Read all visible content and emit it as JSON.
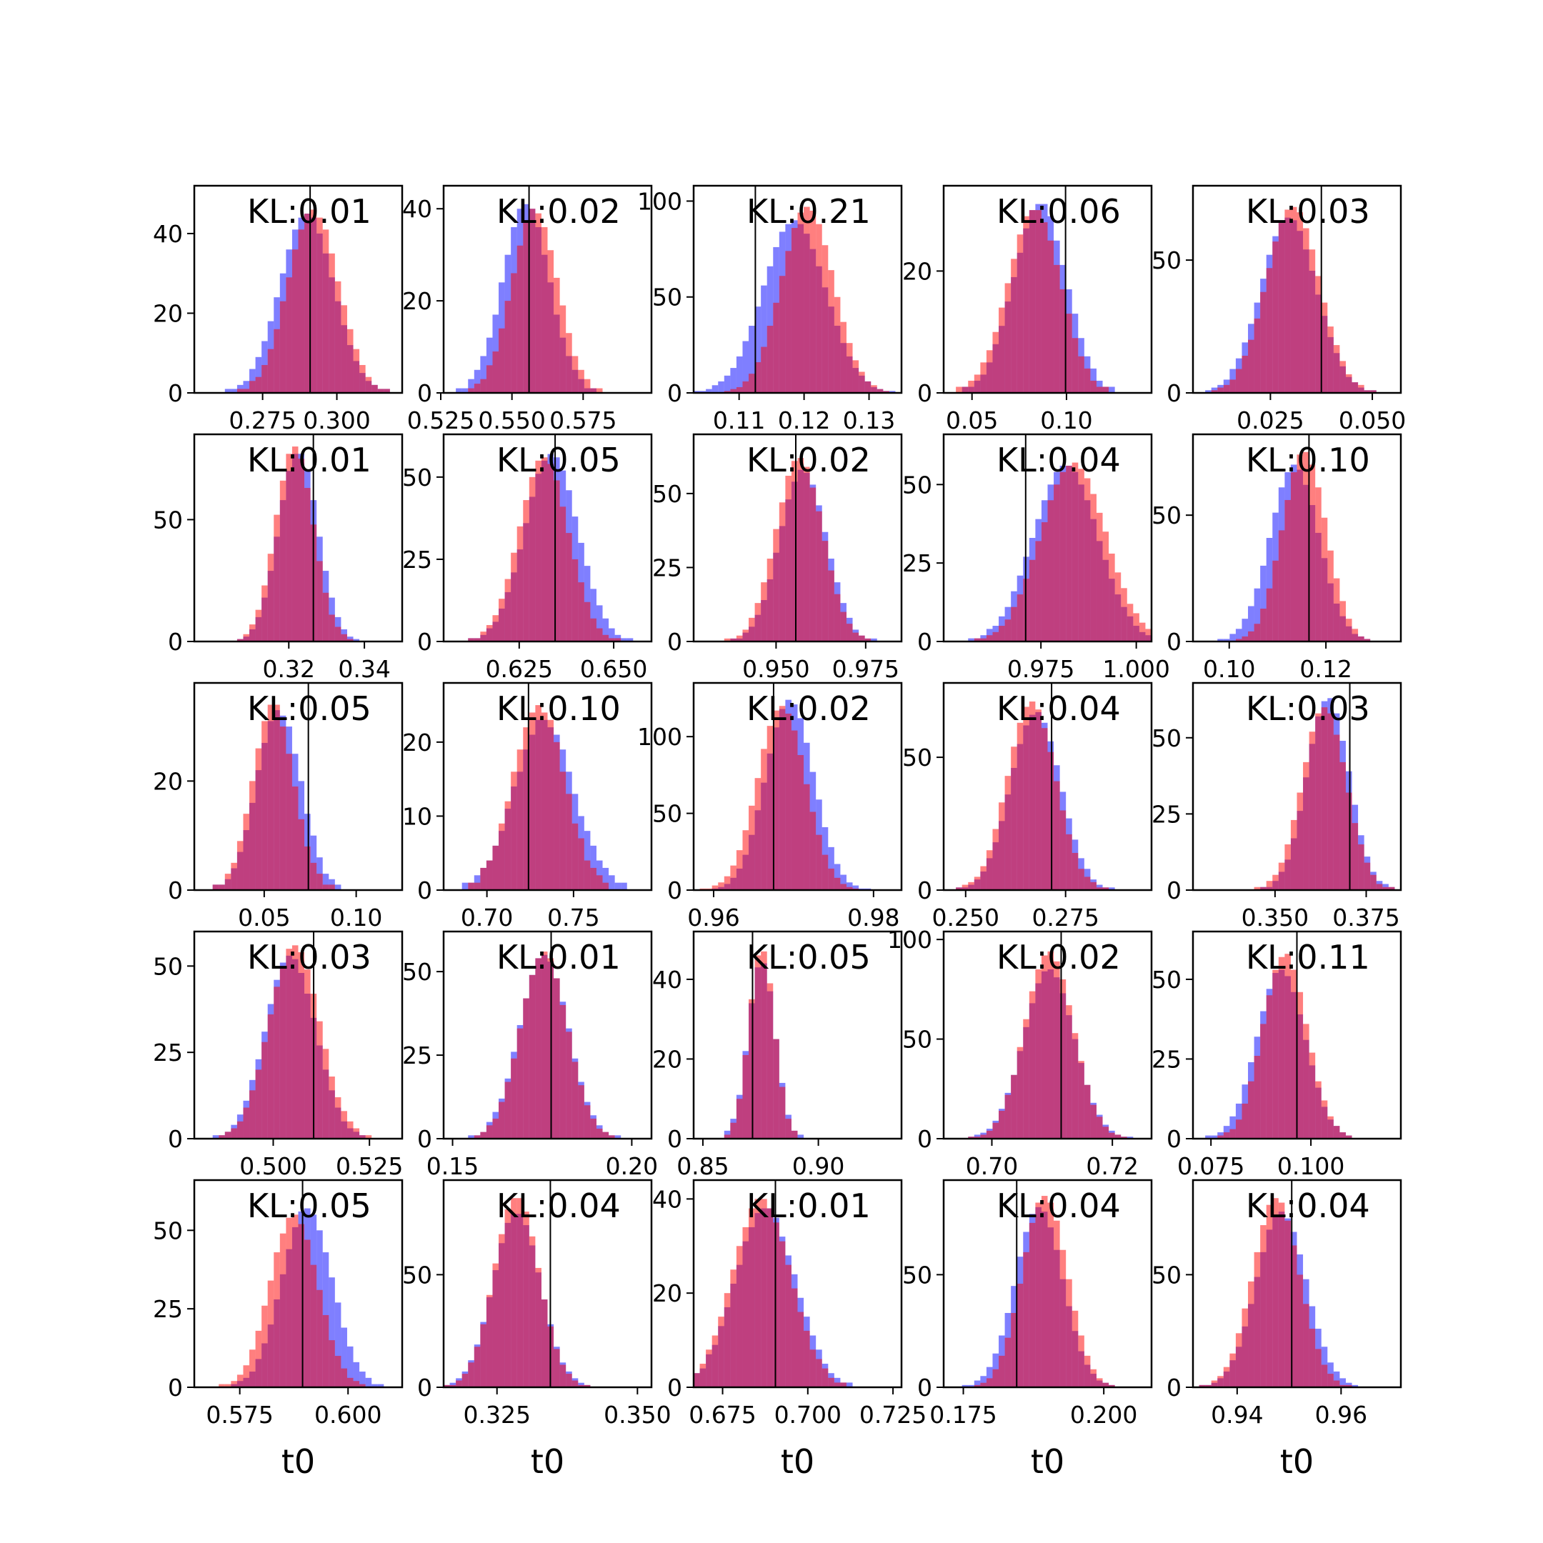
{
  "figure": {
    "xlabel": "t0",
    "colors": {
      "red": "#ff0000",
      "blue": "#0000ff",
      "overlap": "#7f3fbf",
      "axis": "#000000"
    },
    "panel_label_prefix": "KL:"
  },
  "chart_data": [
    {
      "type": "histogram",
      "kl": "0.01",
      "xlim": [
        0.252,
        0.322
      ],
      "ylim": [
        0,
        52
      ],
      "xticks": [
        0.275,
        0.3
      ],
      "xtick_labels": [
        "0.275",
        "0.300"
      ],
      "yticks": [
        0,
        20,
        40
      ],
      "ytick_labels": [
        "0",
        "20",
        "40"
      ],
      "truth": 0.291,
      "red": {
        "mean": 0.292,
        "sd": 0.0085,
        "peak": 46
      },
      "blue": {
        "mean": 0.29,
        "sd": 0.009,
        "peak": 45
      },
      "xlabel": ""
    },
    {
      "type": "histogram",
      "kl": "0.02",
      "xlim": [
        0.526,
        0.599
      ],
      "ylim": [
        0,
        45
      ],
      "xticks": [
        0.525,
        0.55,
        0.575
      ],
      "xtick_labels": [
        "0.525",
        "0.550",
        "0.575"
      ],
      "yticks": [
        0,
        20,
        40
      ],
      "ytick_labels": [
        "0",
        "20",
        "40"
      ],
      "truth": 0.556,
      "red": {
        "mean": 0.558,
        "sd": 0.008,
        "peak": 40
      },
      "blue": {
        "mean": 0.555,
        "sd": 0.0082,
        "peak": 41
      },
      "xlabel": ""
    },
    {
      "type": "histogram",
      "kl": "0.21",
      "xlim": [
        0.103,
        0.135
      ],
      "ylim": [
        0,
        108
      ],
      "xticks": [
        0.11,
        0.12,
        0.13
      ],
      "xtick_labels": [
        "0.11",
        "0.12",
        "0.13"
      ],
      "yticks": [
        0,
        50,
        100
      ],
      "ytick_labels": [
        "0",
        "50",
        "100"
      ],
      "truth": 0.1125,
      "red": {
        "mean": 0.1205,
        "sd": 0.004,
        "peak": 97
      },
      "blue": {
        "mean": 0.1185,
        "sd": 0.0048,
        "peak": 90
      },
      "xlabel": ""
    },
    {
      "type": "histogram",
      "kl": "0.06",
      "xlim": [
        0.035,
        0.145
      ],
      "ylim": [
        0,
        34
      ],
      "xticks": [
        0.05,
        0.1
      ],
      "xtick_labels": [
        "0.05",
        "0.10"
      ],
      "yticks": [
        0,
        20
      ],
      "ytick_labels": [
        "0",
        "20"
      ],
      "truth": 0.0995,
      "red": {
        "mean": 0.083,
        "sd": 0.014,
        "peak": 30
      },
      "blue": {
        "mean": 0.086,
        "sd": 0.014,
        "peak": 31
      },
      "xlabel": ""
    },
    {
      "type": "histogram",
      "kl": "0.03",
      "xlim": [
        0.006,
        0.057
      ],
      "ylim": [
        0,
        78
      ],
      "xticks": [
        0.025,
        0.05
      ],
      "xtick_labels": [
        "0.025",
        "0.050"
      ],
      "yticks": [
        0,
        50
      ],
      "ytick_labels": [
        "0",
        "50"
      ],
      "truth": 0.0375,
      "red": {
        "mean": 0.0305,
        "sd": 0.0065,
        "peak": 70
      },
      "blue": {
        "mean": 0.0295,
        "sd": 0.0068,
        "peak": 66
      },
      "xlabel": ""
    },
    {
      "type": "histogram",
      "kl": "0.01",
      "xlim": [
        0.295,
        0.35
      ],
      "ylim": [
        0,
        85
      ],
      "xticks": [
        0.32,
        0.34
      ],
      "xtick_labels": [
        "0.32",
        "0.34"
      ],
      "yticks": [
        0,
        50
      ],
      "ytick_labels": [
        "0",
        "50"
      ],
      "truth": 0.3265,
      "red": {
        "mean": 0.3215,
        "sd": 0.005,
        "peak": 80
      },
      "blue": {
        "mean": 0.3225,
        "sd": 0.0052,
        "peak": 78
      },
      "xlabel": ""
    },
    {
      "type": "histogram",
      "kl": "0.05",
      "xlim": [
        0.605,
        0.66
      ],
      "ylim": [
        0,
        63
      ],
      "xticks": [
        0.625,
        0.65
      ],
      "xtick_labels": [
        "0.625",
        "0.650"
      ],
      "yticks": [
        0,
        25,
        50
      ],
      "ytick_labels": [
        "0",
        "25",
        "50"
      ],
      "truth": 0.6345,
      "red": {
        "mean": 0.6315,
        "sd": 0.0065,
        "peak": 56
      },
      "blue": {
        "mean": 0.6335,
        "sd": 0.007,
        "peak": 57
      },
      "xlabel": ""
    },
    {
      "type": "histogram",
      "kl": "0.02",
      "xlim": [
        0.927,
        0.985
      ],
      "ylim": [
        0,
        70
      ],
      "xticks": [
        0.95,
        0.975
      ],
      "xtick_labels": [
        "0.950",
        "0.975"
      ],
      "yticks": [
        0,
        25,
        50
      ],
      "ytick_labels": [
        "0",
        "25",
        "50"
      ],
      "truth": 0.9555,
      "red": {
        "mean": 0.9565,
        "sd": 0.0065,
        "peak": 62
      },
      "blue": {
        "mean": 0.9575,
        "sd": 0.0065,
        "peak": 58
      },
      "xlabel": ""
    },
    {
      "type": "histogram",
      "kl": "0.04",
      "xlim": [
        0.9495,
        1.004
      ],
      "ylim": [
        0,
        66
      ],
      "xticks": [
        0.975,
        1.0
      ],
      "xtick_labels": [
        "0.975",
        "1.000"
      ],
      "yticks": [
        0,
        25,
        50
      ],
      "ytick_labels": [
        "0",
        "25",
        "50"
      ],
      "truth": 0.971,
      "red": {
        "mean": 0.9835,
        "sd": 0.0085,
        "peak": 57
      },
      "blue": {
        "mean": 0.9815,
        "sd": 0.0085,
        "peak": 56
      },
      "xlabel": ""
    },
    {
      "type": "histogram",
      "kl": "0.10",
      "xlim": [
        0.0925,
        0.1355
      ],
      "ylim": [
        0,
        82
      ],
      "xticks": [
        0.1,
        0.12
      ],
      "xtick_labels": [
        "0.10",
        "0.12"
      ],
      "yticks": [
        0,
        50
      ],
      "ytick_labels": [
        "0",
        "50"
      ],
      "truth": 0.1165,
      "red": {
        "mean": 0.1155,
        "sd": 0.0045,
        "peak": 75
      },
      "blue": {
        "mean": 0.1135,
        "sd": 0.005,
        "peak": 70
      },
      "xlabel": ""
    },
    {
      "type": "histogram",
      "kl": "0.05",
      "xlim": [
        0.012,
        0.125
      ],
      "ylim": [
        0,
        38
      ],
      "xticks": [
        0.05,
        0.1
      ],
      "xtick_labels": [
        "0.05",
        "0.10"
      ],
      "yticks": [
        0,
        20
      ],
      "ytick_labels": [
        "0",
        "20"
      ],
      "truth": 0.074,
      "red": {
        "mean": 0.055,
        "sd": 0.011,
        "peak": 34
      },
      "blue": {
        "mean": 0.058,
        "sd": 0.012,
        "peak": 33
      },
      "xlabel": ""
    },
    {
      "type": "histogram",
      "kl": "0.10",
      "xlim": [
        0.675,
        0.795
      ],
      "ylim": [
        0,
        28
      ],
      "xticks": [
        0.7,
        0.75
      ],
      "xtick_labels": [
        "0.70",
        "0.75"
      ],
      "yticks": [
        0,
        10,
        20
      ],
      "ytick_labels": [
        "0",
        "10",
        "20"
      ],
      "truth": 0.724,
      "red": {
        "mean": 0.73,
        "sd": 0.015,
        "peak": 25
      },
      "blue": {
        "mean": 0.733,
        "sd": 0.017,
        "peak": 23
      },
      "xlabel": ""
    },
    {
      "type": "histogram",
      "kl": "0.02",
      "xlim": [
        0.9575,
        0.9835
      ],
      "ylim": [
        0,
        135
      ],
      "xticks": [
        0.96,
        0.98
      ],
      "xtick_labels": [
        "0.96",
        "0.98"
      ],
      "yticks": [
        0,
        50,
        100
      ],
      "ytick_labels": [
        "0",
        "50",
        "100"
      ],
      "truth": 0.9675,
      "red": {
        "mean": 0.9685,
        "sd": 0.003,
        "peak": 120
      },
      "blue": {
        "mean": 0.9695,
        "sd": 0.003,
        "peak": 124
      },
      "xlabel": ""
    },
    {
      "type": "histogram",
      "kl": "0.04",
      "xlim": [
        0.2445,
        0.2965
      ],
      "ylim": [
        0,
        78
      ],
      "xticks": [
        0.25,
        0.275
      ],
      "xtick_labels": [
        "0.250",
        "0.275"
      ],
      "yticks": [
        0,
        50
      ],
      "ytick_labels": [
        "0",
        "50"
      ],
      "truth": 0.2715,
      "red": {
        "mean": 0.2665,
        "sd": 0.006,
        "peak": 71
      },
      "blue": {
        "mean": 0.2675,
        "sd": 0.0062,
        "peak": 67
      },
      "xlabel": ""
    },
    {
      "type": "histogram",
      "kl": "0.03",
      "xlim": [
        0.3275,
        0.3845
      ],
      "ylim": [
        0,
        68
      ],
      "xticks": [
        0.35,
        0.375
      ],
      "xtick_labels": [
        "0.350",
        "0.375"
      ],
      "yticks": [
        0,
        25,
        50
      ],
      "ytick_labels": [
        "0",
        "25",
        "50"
      ],
      "truth": 0.3705,
      "red": {
        "mean": 0.3635,
        "sd": 0.006,
        "peak": 60
      },
      "blue": {
        "mean": 0.3645,
        "sd": 0.0058,
        "peak": 63
      },
      "xlabel": ""
    },
    {
      "type": "histogram",
      "kl": "0.03",
      "xlim": [
        0.4795,
        0.5335
      ],
      "ylim": [
        0,
        60
      ],
      "xticks": [
        0.5,
        0.525
      ],
      "xtick_labels": [
        "0.500",
        "0.525"
      ],
      "yticks": [
        0,
        25,
        50
      ],
      "ytick_labels": [
        "0",
        "25",
        "50"
      ],
      "truth": 0.5105,
      "red": {
        "mean": 0.5055,
        "sd": 0.0065,
        "peak": 56
      },
      "blue": {
        "mean": 0.5045,
        "sd": 0.0065,
        "peak": 53
      },
      "xlabel": ""
    },
    {
      "type": "histogram",
      "kl": "0.01",
      "xlim": [
        0.1475,
        0.2055
      ],
      "ylim": [
        0,
        62
      ],
      "xticks": [
        0.15,
        0.2
      ],
      "xtick_labels": [
        "0.15",
        "0.20"
      ],
      "yticks": [
        0,
        25,
        50
      ],
      "ytick_labels": [
        "0",
        "25",
        "50"
      ],
      "truth": 0.1775,
      "red": {
        "mean": 0.1755,
        "sd": 0.0065,
        "peak": 56
      },
      "blue": {
        "mean": 0.1755,
        "sd": 0.0068,
        "peak": 55
      },
      "xlabel": ""
    },
    {
      "type": "histogram",
      "kl": "0.05",
      "xlim": [
        0.846,
        0.936
      ],
      "ylim": [
        0,
        52
      ],
      "xticks": [
        0.85,
        0.9
      ],
      "xtick_labels": [
        "0.85",
        "0.90"
      ],
      "yticks": [
        0,
        20,
        40
      ],
      "ytick_labels": [
        "0",
        "20",
        "40"
      ],
      "truth": 0.8715,
      "red": {
        "mean": 0.8755,
        "sd": 0.0055,
        "peak": 48
      },
      "blue": {
        "mean": 0.8755,
        "sd": 0.0058,
        "peak": 45
      },
      "xlabel": ""
    },
    {
      "type": "histogram",
      "kl": "0.02",
      "xlim": [
        0.692,
        0.7265
      ],
      "ylim": [
        0,
        104
      ],
      "xticks": [
        0.7,
        0.72
      ],
      "xtick_labels": [
        "0.70",
        "0.72"
      ],
      "yticks": [
        0,
        50,
        100
      ],
      "ytick_labels": [
        "0",
        "50",
        "100"
      ],
      "truth": 0.7115,
      "red": {
        "mean": 0.7095,
        "sd": 0.004,
        "peak": 94
      },
      "blue": {
        "mean": 0.7095,
        "sd": 0.0042,
        "peak": 85
      },
      "xlabel": ""
    },
    {
      "type": "histogram",
      "kl": "0.11",
      "xlim": [
        0.0705,
        0.1225
      ],
      "ylim": [
        0,
        65
      ],
      "xticks": [
        0.075,
        0.1
      ],
      "xtick_labels": [
        "0.075",
        "0.100"
      ],
      "yticks": [
        0,
        25,
        50
      ],
      "ytick_labels": [
        "0",
        "25",
        "50"
      ],
      "truth": 0.0965,
      "red": {
        "mean": 0.0935,
        "sd": 0.0055,
        "peak": 58
      },
      "blue": {
        "mean": 0.0925,
        "sd": 0.006,
        "peak": 53
      },
      "xlabel": ""
    },
    {
      "type": "histogram",
      "kl": "0.05",
      "xlim": [
        0.5645,
        0.6125
      ],
      "ylim": [
        0,
        66
      ],
      "xticks": [
        0.575,
        0.6
      ],
      "xtick_labels": [
        "0.575",
        "0.600"
      ],
      "yticks": [
        0,
        25,
        50
      ],
      "ytick_labels": [
        "0",
        "25",
        "50"
      ],
      "truth": 0.5895,
      "red": {
        "mean": 0.5875,
        "sd": 0.0055,
        "peak": 55
      },
      "blue": {
        "mean": 0.5905,
        "sd": 0.0058,
        "peak": 57
      },
      "xlabel": "t0"
    },
    {
      "type": "histogram",
      "kl": "0.04",
      "xlim": [
        0.3155,
        0.3525
      ],
      "ylim": [
        0,
        92
      ],
      "xticks": [
        0.325,
        0.35
      ],
      "xtick_labels": [
        "0.325",
        "0.350"
      ],
      "yticks": [
        0,
        50
      ],
      "ytick_labels": [
        "0",
        "50"
      ],
      "truth": 0.3345,
      "red": {
        "mean": 0.3285,
        "sd": 0.004,
        "peak": 85
      },
      "blue": {
        "mean": 0.3285,
        "sd": 0.0042,
        "peak": 78
      },
      "xlabel": "t0"
    },
    {
      "type": "histogram",
      "kl": "0.01",
      "xlim": [
        0.6665,
        0.7275
      ],
      "ylim": [
        0,
        44
      ],
      "xticks": [
        0.675,
        0.7,
        0.725
      ],
      "xtick_labels": [
        "0.675",
        "0.700",
        "0.725"
      ],
      "yticks": [
        0,
        20,
        40
      ],
      "ytick_labels": [
        "0",
        "20",
        "40"
      ],
      "truth": 0.6905,
      "red": {
        "mean": 0.6865,
        "sd": 0.0085,
        "peak": 40
      },
      "blue": {
        "mean": 0.6875,
        "sd": 0.0088,
        "peak": 38
      },
      "xlabel": "t0"
    },
    {
      "type": "histogram",
      "kl": "0.04",
      "xlim": [
        0.1715,
        0.2085
      ],
      "ylim": [
        0,
        92
      ],
      "xticks": [
        0.175,
        0.2
      ],
      "xtick_labels": [
        "0.175",
        "0.200"
      ],
      "yticks": [
        0,
        50
      ],
      "ytick_labels": [
        "0",
        "50"
      ],
      "truth": 0.1845,
      "red": {
        "mean": 0.1895,
        "sd": 0.004,
        "peak": 85
      },
      "blue": {
        "mean": 0.1885,
        "sd": 0.0042,
        "peak": 80
      },
      "xlabel": "t0"
    },
    {
      "type": "histogram",
      "kl": "0.04",
      "xlim": [
        0.9315,
        0.9715
      ],
      "ylim": [
        0,
        92
      ],
      "xticks": [
        0.94,
        0.96
      ],
      "xtick_labels": [
        "0.94",
        "0.96"
      ],
      "yticks": [
        0,
        50
      ],
      "ytick_labels": [
        "0",
        "50"
      ],
      "truth": 0.9505,
      "red": {
        "mean": 0.9475,
        "sd": 0.0045,
        "peak": 84
      },
      "blue": {
        "mean": 0.9485,
        "sd": 0.0048,
        "peak": 78
      },
      "xlabel": "t0"
    }
  ]
}
